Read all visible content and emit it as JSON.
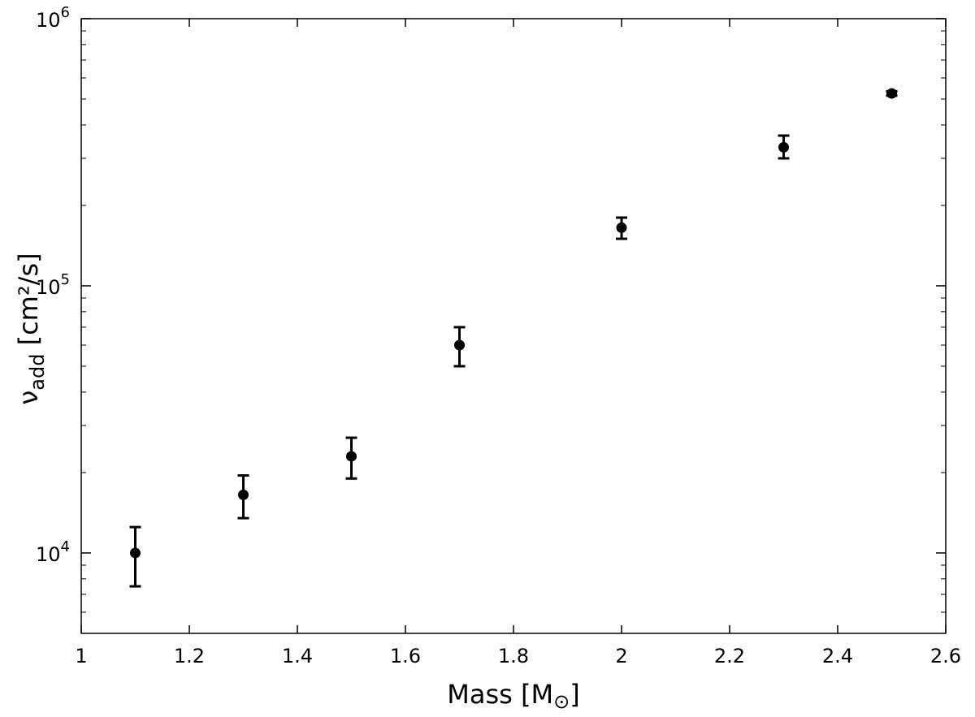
{
  "chart_data": {
    "type": "scatter",
    "xlabel": "Mass [M",
    "xlabel_symbol": "⊙",
    "xlabel_close": "]",
    "ylabel": "ν",
    "ylabel_sub": "add",
    "ylabel_unit": " [cm²/s]",
    "xlim": [
      1.0,
      2.6
    ],
    "ylim": [
      5000,
      1000000
    ],
    "yscale": "log",
    "grid": false,
    "x_ticks": [
      "1",
      "1.2",
      "1.4",
      "1.6",
      "1.8",
      "2",
      "2.2",
      "2.4",
      "2.6"
    ],
    "x_tick_values": [
      1.0,
      1.2,
      1.4,
      1.6,
      1.8,
      2.0,
      2.2,
      2.4,
      2.6
    ],
    "y_major_ticks": [
      {
        "value": 10000,
        "base": "10",
        "exp": "4"
      },
      {
        "value": 100000,
        "base": "10",
        "exp": "5"
      },
      {
        "value": 1000000,
        "base": "10",
        "exp": "6"
      }
    ],
    "points": [
      {
        "x": 1.1,
        "y": 10000,
        "y_low": 7500,
        "y_high": 12500
      },
      {
        "x": 1.3,
        "y": 16500,
        "y_low": 13500,
        "y_high": 19500
      },
      {
        "x": 1.5,
        "y": 23000,
        "y_low": 19000,
        "y_high": 27000
      },
      {
        "x": 1.7,
        "y": 60000,
        "y_low": 50000,
        "y_high": 70000
      },
      {
        "x": 2.0,
        "y": 165000,
        "y_low": 150000,
        "y_high": 180000
      },
      {
        "x": 2.3,
        "y": 330000,
        "y_low": 300000,
        "y_high": 365000
      },
      {
        "x": 2.5,
        "y": 525000,
        "y_low": 515000,
        "y_high": 535000
      }
    ],
    "marker_color": "#000000"
  }
}
